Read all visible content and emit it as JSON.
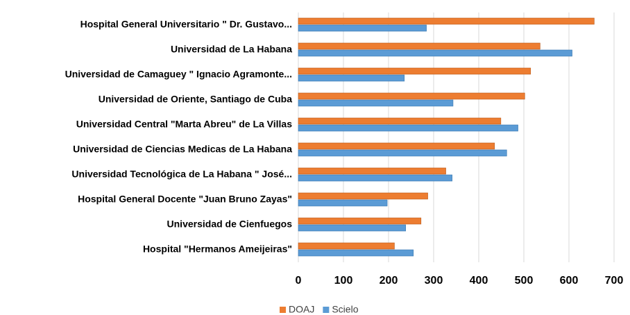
{
  "chart_data": {
    "type": "bar",
    "orientation": "horizontal",
    "categories": [
      "Hospital General Universitario \" Dr. Gustavo...",
      "Universidad de La Habana",
      "Universidad de Camaguey \" Ignacio Agramonte...",
      "Universidad de Oriente, Santiago de Cuba",
      "Universidad Central  \"Marta Abreu\" de La Villas",
      "Universidad de Ciencias Medicas de La Habana",
      "Universidad Tecnológica de La Habana \" José...",
      "Hospital General Docente \"Juan Bruno Zayas\"",
      "Universidad de Cienfuegos",
      "Hospital \"Hermanos Ameijeiras\""
    ],
    "series": [
      {
        "name": "DOAJ",
        "color": "#ED7D31",
        "values": [
          656,
          536,
          515,
          502,
          449,
          435,
          327,
          287,
          272,
          213
        ]
      },
      {
        "name": "Scielo",
        "color": "#5B9BD5",
        "values": [
          284,
          607,
          235,
          343,
          487,
          462,
          341,
          197,
          238,
          255
        ]
      }
    ],
    "xlim": [
      0,
      700
    ],
    "xticks": [
      0,
      100,
      200,
      300,
      400,
      500,
      600,
      700
    ],
    "grid": true,
    "legend": "bottom"
  }
}
